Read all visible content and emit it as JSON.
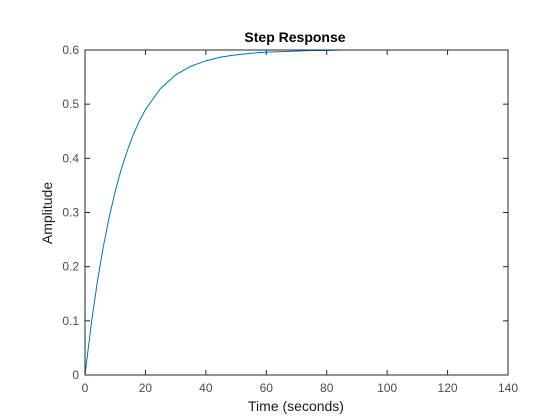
{
  "chart_data": {
    "type": "line",
    "title": "Step Response",
    "xlabel": "Time (seconds)",
    "ylabel": "Amplitude",
    "xlim": [
      0,
      140
    ],
    "ylim": [
      0,
      0.6
    ],
    "x_ticks": [
      "0",
      "20",
      "40",
      "60",
      "80",
      "100",
      "120",
      "140"
    ],
    "y_ticks": [
      "0",
      "0.1",
      "0.2",
      "0.3",
      "0.4",
      "0.5",
      "0.6"
    ],
    "grid": false,
    "series": [
      {
        "color": "#0072bd",
        "x": [
          0,
          2,
          4,
          6,
          8,
          10,
          12,
          14,
          16,
          18,
          20,
          25,
          30,
          35,
          40,
          45,
          50,
          55,
          60,
          65,
          70,
          75,
          80,
          85,
          90,
          95,
          100,
          110,
          120,
          130,
          140
        ],
        "y": [
          0,
          0.091,
          0.169,
          0.235,
          0.291,
          0.339,
          0.38,
          0.414,
          0.444,
          0.469,
          0.49,
          0.529,
          0.554,
          0.57,
          0.58,
          0.587,
          0.591,
          0.594,
          0.596,
          0.597,
          0.598,
          0.599,
          0.599,
          0.6,
          0.6,
          0.6,
          0.6,
          0.6,
          0.6,
          0.6,
          0.6
        ]
      }
    ],
    "final_value_reference": 0.6
  }
}
